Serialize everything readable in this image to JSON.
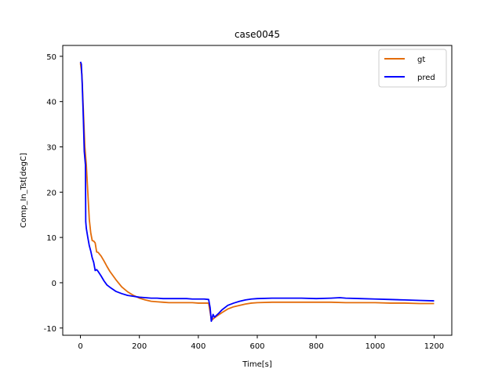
{
  "chart_data": {
    "type": "line",
    "title": "case0045",
    "xlabel": "Time[s]",
    "ylabel": "Comp_In_Tst[degC]",
    "xlim": [
      -60,
      1260
    ],
    "ylim": [
      -11.6,
      52.4
    ],
    "xticks": [
      0,
      200,
      400,
      600,
      800,
      1000,
      1200
    ],
    "yticks": [
      -10,
      0,
      10,
      20,
      30,
      40,
      50
    ],
    "grid": false,
    "legend_position": "top-right",
    "series": [
      {
        "name": "gt",
        "color": "#e36c0a",
        "x": [
          0,
          5,
          10,
          15,
          20,
          25,
          30,
          35,
          40,
          45,
          50,
          55,
          60,
          70,
          80,
          90,
          100,
          120,
          140,
          160,
          180,
          200,
          220,
          240,
          260,
          280,
          300,
          320,
          340,
          360,
          380,
          400,
          420,
          435,
          440,
          445,
          450,
          460,
          480,
          500,
          520,
          540,
          560,
          580,
          600,
          650,
          700,
          750,
          800,
          850,
          900,
          950,
          1000,
          1050,
          1100,
          1150,
          1200
        ],
        "y": [
          48.5,
          46,
          38,
          30,
          26,
          20,
          14,
          11,
          9.3,
          9.2,
          8.8,
          6.8,
          6.7,
          5.9,
          4.8,
          3.6,
          2.5,
          0.7,
          -0.9,
          -2.0,
          -2.8,
          -3.4,
          -3.8,
          -4.1,
          -4.2,
          -4.3,
          -4.4,
          -4.4,
          -4.4,
          -4.4,
          -4.4,
          -4.5,
          -4.5,
          -4.5,
          -6.5,
          -8.3,
          -8.0,
          -7.5,
          -6.6,
          -5.8,
          -5.3,
          -5.0,
          -4.7,
          -4.5,
          -4.4,
          -4.3,
          -4.3,
          -4.3,
          -4.3,
          -4.3,
          -4.4,
          -4.4,
          -4.4,
          -4.5,
          -4.5,
          -4.6,
          -4.6
        ]
      },
      {
        "name": "pred",
        "color": "#0000ff",
        "x": [
          0,
          3,
          6,
          10,
          13,
          15,
          17,
          18,
          20,
          25,
          30,
          35,
          40,
          45,
          50,
          55,
          60,
          70,
          80,
          90,
          100,
          120,
          140,
          160,
          180,
          200,
          220,
          240,
          260,
          280,
          300,
          320,
          340,
          360,
          380,
          400,
          420,
          435,
          440,
          444,
          447,
          450,
          455,
          460,
          470,
          480,
          500,
          520,
          540,
          560,
          580,
          600,
          650,
          700,
          750,
          800,
          850,
          880,
          900,
          950,
          1000,
          1050,
          1100,
          1150,
          1200
        ],
        "y": [
          48.8,
          48.3,
          44,
          36,
          29,
          27.5,
          26,
          13.5,
          12,
          10,
          8.2,
          7,
          5.5,
          4.5,
          2.7,
          2.9,
          2.5,
          1.5,
          0.4,
          -0.5,
          -1.0,
          -1.9,
          -2.4,
          -2.8,
          -3.0,
          -3.2,
          -3.3,
          -3.4,
          -3.4,
          -3.5,
          -3.5,
          -3.5,
          -3.5,
          -3.5,
          -3.6,
          -3.6,
          -3.6,
          -3.7,
          -5.5,
          -8.5,
          -7.8,
          -7.0,
          -7.6,
          -7.3,
          -6.7,
          -6.0,
          -5.0,
          -4.5,
          -4.1,
          -3.8,
          -3.6,
          -3.5,
          -3.4,
          -3.4,
          -3.4,
          -3.5,
          -3.4,
          -3.3,
          -3.4,
          -3.5,
          -3.6,
          -3.7,
          -3.8,
          -3.9,
          -4.0
        ]
      }
    ]
  }
}
